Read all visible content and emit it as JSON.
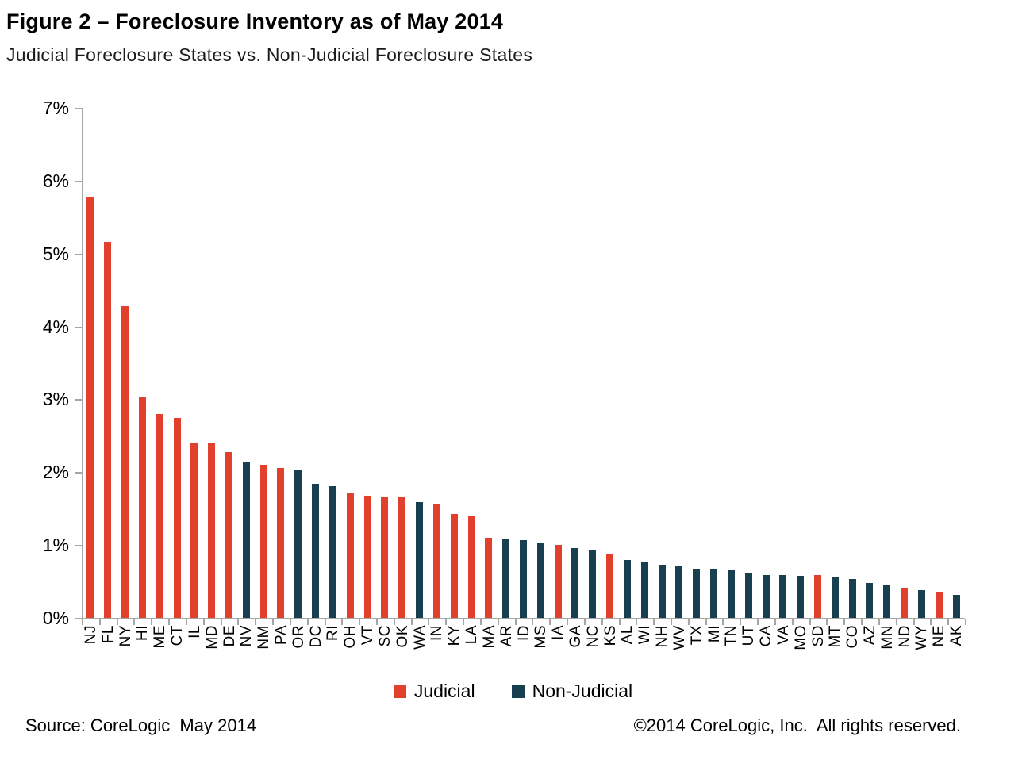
{
  "title": "Figure 2 – Foreclosure Inventory as of May 2014",
  "subtitle": "Judicial Foreclosure States vs. Non-Judicial Foreclosure States",
  "legend": {
    "judicial": {
      "label": "Judicial",
      "color": "#e2402c"
    },
    "non_judicial": {
      "label": "Non-Judicial",
      "color": "#183f50"
    }
  },
  "footer": {
    "source": "Source: CoreLogic  May 2014",
    "copyright": "©2014 CoreLogic, Inc.  All rights reserved."
  },
  "chart_data": {
    "type": "bar",
    "title": "Figure 2 – Foreclosure Inventory as of May 2014",
    "subtitle": "Judicial Foreclosure States vs. Non-Judicial Foreclosure States",
    "xlabel": "",
    "ylabel": "",
    "ylim": [
      0,
      7
    ],
    "ytick_labels": [
      "0%",
      "1%",
      "2%",
      "3%",
      "4%",
      "5%",
      "6%",
      "7%"
    ],
    "grid": false,
    "legend_position": "bottom-center",
    "series_colors": {
      "Judicial": "#e2402c",
      "Non-Judicial": "#183f50"
    },
    "points": [
      {
        "state": "NJ",
        "value": 5.78,
        "series": "Judicial"
      },
      {
        "state": "FL",
        "value": 5.16,
        "series": "Judicial"
      },
      {
        "state": "NY",
        "value": 4.28,
        "series": "Judicial"
      },
      {
        "state": "HI",
        "value": 3.04,
        "series": "Judicial"
      },
      {
        "state": "ME",
        "value": 2.8,
        "series": "Judicial"
      },
      {
        "state": "CT",
        "value": 2.74,
        "series": "Judicial"
      },
      {
        "state": "IL",
        "value": 2.39,
        "series": "Judicial"
      },
      {
        "state": "MD",
        "value": 2.39,
        "series": "Judicial"
      },
      {
        "state": "DE",
        "value": 2.27,
        "series": "Judicial"
      },
      {
        "state": "NV",
        "value": 2.15,
        "series": "Non-Judicial"
      },
      {
        "state": "NM",
        "value": 2.1,
        "series": "Judicial"
      },
      {
        "state": "PA",
        "value": 2.06,
        "series": "Judicial"
      },
      {
        "state": "OR",
        "value": 2.02,
        "series": "Non-Judicial"
      },
      {
        "state": "DC",
        "value": 1.84,
        "series": "Non-Judicial"
      },
      {
        "state": "RI",
        "value": 1.81,
        "series": "Non-Judicial"
      },
      {
        "state": "OH",
        "value": 1.71,
        "series": "Judicial"
      },
      {
        "state": "VT",
        "value": 1.68,
        "series": "Judicial"
      },
      {
        "state": "SC",
        "value": 1.67,
        "series": "Judicial"
      },
      {
        "state": "OK",
        "value": 1.65,
        "series": "Judicial"
      },
      {
        "state": "WA",
        "value": 1.59,
        "series": "Non-Judicial"
      },
      {
        "state": "IN",
        "value": 1.56,
        "series": "Judicial"
      },
      {
        "state": "KY",
        "value": 1.43,
        "series": "Judicial"
      },
      {
        "state": "LA",
        "value": 1.4,
        "series": "Judicial"
      },
      {
        "state": "MA",
        "value": 1.1,
        "series": "Judicial"
      },
      {
        "state": "AR",
        "value": 1.08,
        "series": "Non-Judicial"
      },
      {
        "state": "ID",
        "value": 1.07,
        "series": "Non-Judicial"
      },
      {
        "state": "MS",
        "value": 1.03,
        "series": "Non-Judicial"
      },
      {
        "state": "IA",
        "value": 1.0,
        "series": "Judicial"
      },
      {
        "state": "GA",
        "value": 0.96,
        "series": "Non-Judicial"
      },
      {
        "state": "NC",
        "value": 0.92,
        "series": "Non-Judicial"
      },
      {
        "state": "KS",
        "value": 0.87,
        "series": "Judicial"
      },
      {
        "state": "AL",
        "value": 0.8,
        "series": "Non-Judicial"
      },
      {
        "state": "WI",
        "value": 0.77,
        "series": "Non-Judicial"
      },
      {
        "state": "NH",
        "value": 0.73,
        "series": "Non-Judicial"
      },
      {
        "state": "WV",
        "value": 0.71,
        "series": "Non-Judicial"
      },
      {
        "state": "TX",
        "value": 0.68,
        "series": "Non-Judicial"
      },
      {
        "state": "MI",
        "value": 0.68,
        "series": "Non-Judicial"
      },
      {
        "state": "TN",
        "value": 0.65,
        "series": "Non-Judicial"
      },
      {
        "state": "UT",
        "value": 0.61,
        "series": "Non-Judicial"
      },
      {
        "state": "CA",
        "value": 0.59,
        "series": "Non-Judicial"
      },
      {
        "state": "VA",
        "value": 0.59,
        "series": "Non-Judicial"
      },
      {
        "state": "MO",
        "value": 0.58,
        "series": "Non-Judicial"
      },
      {
        "state": "SD",
        "value": 0.59,
        "series": "Judicial"
      },
      {
        "state": "MT",
        "value": 0.55,
        "series": "Non-Judicial"
      },
      {
        "state": "CO",
        "value": 0.53,
        "series": "Non-Judicial"
      },
      {
        "state": "AZ",
        "value": 0.48,
        "series": "Non-Judicial"
      },
      {
        "state": "MN",
        "value": 0.45,
        "series": "Non-Judicial"
      },
      {
        "state": "ND",
        "value": 0.41,
        "series": "Judicial"
      },
      {
        "state": "WY",
        "value": 0.38,
        "series": "Non-Judicial"
      },
      {
        "state": "NE",
        "value": 0.36,
        "series": "Judicial"
      },
      {
        "state": "AK",
        "value": 0.32,
        "series": "Non-Judicial"
      }
    ]
  }
}
